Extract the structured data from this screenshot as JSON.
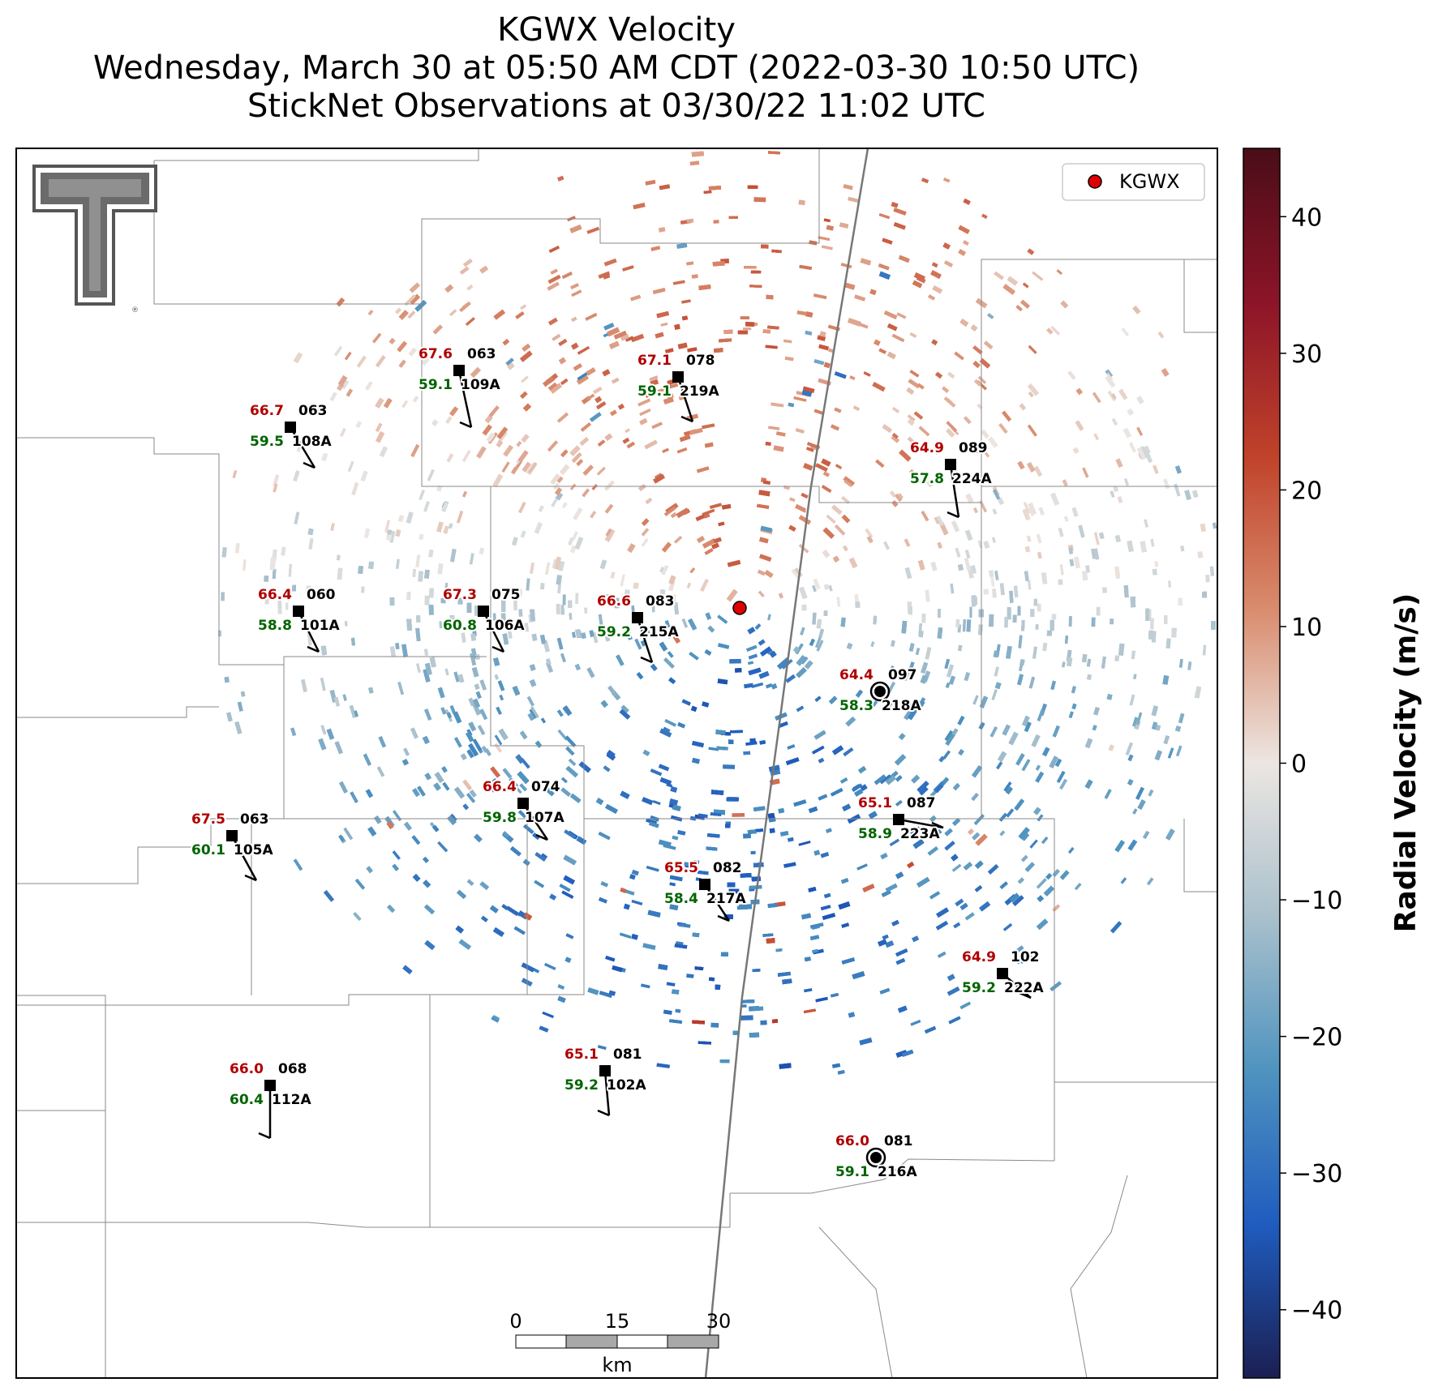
{
  "title": {
    "line1": "KGWX Velocity",
    "line2": "Wednesday, March 30 at 05:50 AM CDT (2022-03-30 10:50 UTC)",
    "line3": "StickNet Observations at 03/30/22 11:02 UTC"
  },
  "legend": {
    "label": "KGWX",
    "marker_color": "#e00000"
  },
  "colorbar": {
    "label": "Radial Velocity (m/s)",
    "min": -45,
    "max": 45,
    "ticks": [
      "40",
      "30",
      "20",
      "10",
      "0",
      "−10",
      "−20",
      "−30",
      "−40"
    ],
    "colors": [
      "#4a0d18",
      "#8c1428",
      "#c0422a",
      "#d98c6e",
      "#ece6e2",
      "#a9c0cc",
      "#4f93bf",
      "#1f5cbf",
      "#1b1f52"
    ]
  },
  "scalebar": {
    "labels": [
      "0",
      "15",
      "30"
    ],
    "unit": "km"
  },
  "logo": {
    "name": "texas-tech-double-t-logo"
  },
  "stations": [
    {
      "id": "109A",
      "temp": "67.6",
      "dew": "59.1",
      "dir": "063",
      "marker": "square"
    },
    {
      "id": "219A",
      "temp": "67.1",
      "dew": "59.1",
      "dir": "078",
      "marker": "square"
    },
    {
      "id": "108A",
      "temp": "66.7",
      "dew": "59.5",
      "dir": "063",
      "marker": "square"
    },
    {
      "id": "224A",
      "temp": "64.9",
      "dew": "57.8",
      "dir": "089",
      "marker": "square"
    },
    {
      "id": "101A",
      "temp": "66.4",
      "dew": "58.8",
      "dir": "060",
      "marker": "square"
    },
    {
      "id": "106A",
      "temp": "67.3",
      "dew": "60.8",
      "dir": "075",
      "marker": "square"
    },
    {
      "id": "215A",
      "temp": "66.6",
      "dew": "59.2",
      "dir": "083",
      "marker": "square"
    },
    {
      "id": "218A",
      "temp": "64.4",
      "dew": "58.3",
      "dir": "097",
      "marker": "circle"
    },
    {
      "id": "107A",
      "temp": "66.4",
      "dew": "59.8",
      "dir": "074",
      "marker": "square"
    },
    {
      "id": "223A",
      "temp": "65.1",
      "dew": "58.9",
      "dir": "087",
      "marker": "square"
    },
    {
      "id": "105A",
      "temp": "67.5",
      "dew": "60.1",
      "dir": "063",
      "marker": "square"
    },
    {
      "id": "217A",
      "temp": "65.5",
      "dew": "58.4",
      "dir": "082",
      "marker": "square"
    },
    {
      "id": "222A",
      "temp": "64.9",
      "dew": "59.2",
      "dir": "102",
      "marker": "square"
    },
    {
      "id": "102A",
      "temp": "65.1",
      "dew": "59.2",
      "dir": "081",
      "marker": "square"
    },
    {
      "id": "112A",
      "temp": "66.0",
      "dew": "60.4",
      "dir": "068",
      "marker": "square"
    },
    {
      "id": "216A",
      "temp": "66.0",
      "dew": "59.1",
      "dir": "081",
      "marker": "circle"
    }
  ]
}
